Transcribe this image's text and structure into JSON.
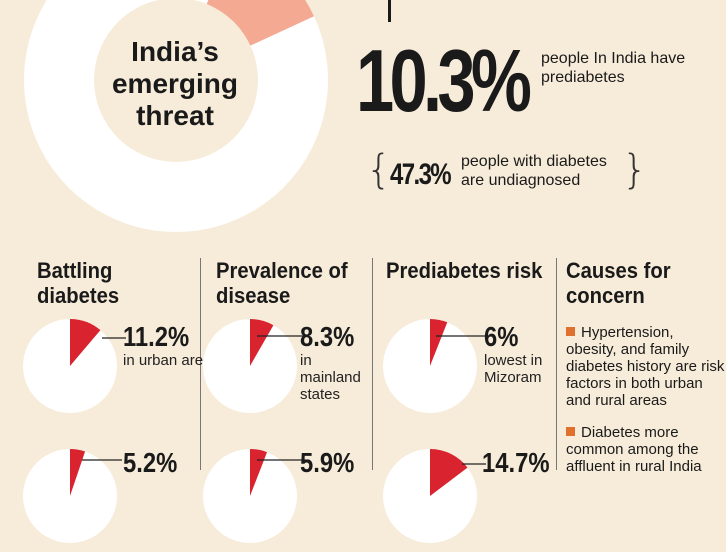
{
  "headline": {
    "title": "India’s emerging threat",
    "prediabetes_pct": "10.3%",
    "prediabetes_desc": "people In India have prediabetes",
    "undiagnosed_pct": "47.3%",
    "undiagnosed_desc": "people with diabetes are undiagnosed",
    "brace_left": "{",
    "brace_right": "}"
  },
  "colors": {
    "background": "#f7ecd9",
    "slice": "#d9232e",
    "donut_slice": "#f4a992",
    "pie_fill": "#ffffff",
    "bullet": "#e0702e"
  },
  "sections": {
    "battling": "Battling diabetes",
    "prevalence": "Prevalence of disease",
    "prediabetes": "Prediabetes risk",
    "causes": "Causes for concern"
  },
  "causes": [
    "Hypertension, obesity, and family diabetes history are risk factors in both urban and rural areas",
    "Diabetes more common among the affluent in rural India"
  ],
  "chart_data": [
    {
      "type": "pie",
      "title": "Battling diabetes",
      "slices": [
        {
          "label": "in urban areas",
          "value": 11.2,
          "display": "11.2%"
        },
        {
          "label": "",
          "value": 5.2,
          "display": "5.2%"
        }
      ]
    },
    {
      "type": "pie",
      "title": "Prevalence of disease",
      "slices": [
        {
          "label": "in mainland states",
          "value": 8.3,
          "display": "8.3%"
        },
        {
          "label": "",
          "value": 5.9,
          "display": "5.9%"
        }
      ]
    },
    {
      "type": "pie",
      "title": "Prediabetes risk",
      "slices": [
        {
          "label": "lowest in Mizoram",
          "value": 6,
          "display": "6%"
        },
        {
          "label": "",
          "value": 14.7,
          "display": "14.7%"
        }
      ]
    }
  ]
}
